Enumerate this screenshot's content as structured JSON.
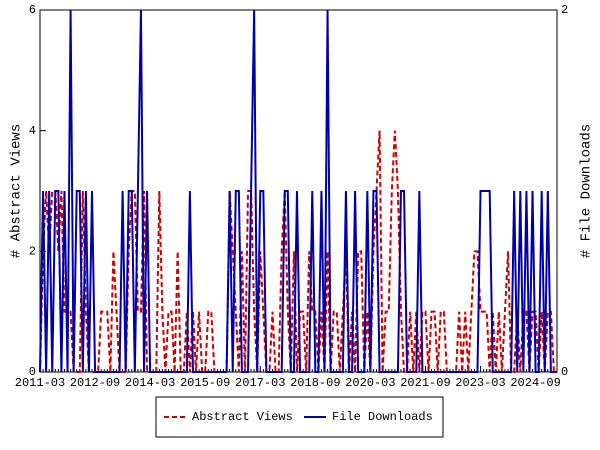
{
  "chart_data": {
    "type": "line",
    "x": [
      "2011-03",
      "2011-04",
      "2011-05",
      "2011-06",
      "2011-07",
      "2011-08",
      "2011-09",
      "2011-10",
      "2011-11",
      "2011-12",
      "2012-01",
      "2012-02",
      "2012-03",
      "2012-04",
      "2012-05",
      "2012-06",
      "2012-07",
      "2012-08",
      "2012-09",
      "2012-10",
      "2012-11",
      "2012-12",
      "2013-01",
      "2013-02",
      "2013-03",
      "2013-04",
      "2013-05",
      "2013-06",
      "2013-07",
      "2013-08",
      "2013-09",
      "2013-10",
      "2013-11",
      "2013-12",
      "2014-01",
      "2014-02",
      "2014-03",
      "2014-04",
      "2014-05",
      "2014-06",
      "2014-07",
      "2014-08",
      "2014-09",
      "2014-10",
      "2014-11",
      "2014-12",
      "2015-01",
      "2015-02",
      "2015-03",
      "2015-04",
      "2015-05",
      "2015-06",
      "2015-07",
      "2015-08",
      "2015-09",
      "2015-10",
      "2015-11",
      "2015-12",
      "2016-01",
      "2016-02",
      "2016-03",
      "2016-04",
      "2016-05",
      "2016-06",
      "2016-07",
      "2016-08",
      "2016-09",
      "2016-10",
      "2016-11",
      "2016-12",
      "2017-01",
      "2017-02",
      "2017-03",
      "2017-04",
      "2017-05",
      "2017-06",
      "2017-07",
      "2017-08",
      "2017-09",
      "2017-10",
      "2017-11",
      "2017-12",
      "2018-01",
      "2018-02",
      "2018-03",
      "2018-04",
      "2018-05",
      "2018-06",
      "2018-07",
      "2018-08",
      "2018-09",
      "2018-10",
      "2018-11",
      "2018-12",
      "2019-01",
      "2019-02",
      "2019-03",
      "2019-04",
      "2019-05",
      "2019-06",
      "2019-07",
      "2019-08",
      "2019-09",
      "2019-10",
      "2019-11",
      "2019-12",
      "2020-01",
      "2020-02",
      "2020-03",
      "2020-04",
      "2020-05",
      "2020-06",
      "2020-07",
      "2020-08",
      "2020-09",
      "2020-10",
      "2020-11",
      "2020-12",
      "2021-01",
      "2021-02",
      "2021-03",
      "2021-04",
      "2021-05",
      "2021-06",
      "2021-07",
      "2021-08",
      "2021-09",
      "2021-10",
      "2021-11",
      "2021-12",
      "2022-01",
      "2022-02",
      "2022-03",
      "2022-04",
      "2022-05",
      "2022-06",
      "2022-07",
      "2022-08",
      "2022-09",
      "2022-10",
      "2022-11",
      "2022-12",
      "2023-01",
      "2023-02",
      "2023-03",
      "2023-04",
      "2023-05",
      "2023-06",
      "2023-07",
      "2023-08",
      "2023-09",
      "2023-10",
      "2023-11",
      "2023-12",
      "2024-01",
      "2024-02",
      "2024-03",
      "2024-04",
      "2024-05",
      "2024-06",
      "2024-07",
      "2024-08",
      "2024-09",
      "2024-10",
      "2024-11",
      "2024-12",
      "2025-01",
      "2025-02",
      "2025-03",
      "2025-04"
    ],
    "xticks": [
      "2011-03",
      "2012-09",
      "2014-03",
      "2015-09",
      "2017-03",
      "2018-09",
      "2020-03",
      "2021-09",
      "2023-03",
      "2024-09"
    ],
    "ylabel": "# Abstract Views",
    "y2label": "# File Downloads",
    "ylim": [
      0,
      6
    ],
    "yticks": [
      0,
      2,
      4,
      6
    ],
    "y2lim": [
      0,
      2
    ],
    "y2ticks": [
      0,
      2
    ],
    "legend": "bottom",
    "series": [
      {
        "name": "Abstract Views",
        "color": "#cc0000",
        "dash": "dashed",
        "axis": "y",
        "values": [
          0,
          2,
          3,
          2,
          3,
          3,
          2,
          3,
          1,
          1,
          1,
          0,
          0,
          0,
          3,
          1,
          0,
          0,
          0,
          0,
          1,
          1,
          1,
          0,
          2,
          1,
          0,
          0,
          0,
          2,
          3,
          3,
          1,
          1,
          3,
          0,
          0,
          0,
          0,
          3,
          1,
          0,
          1,
          1,
          0,
          2,
          0,
          0,
          1,
          0,
          1,
          0,
          1,
          0,
          0,
          1,
          1,
          0,
          0,
          0,
          0,
          0,
          3,
          2,
          1,
          0,
          2,
          0,
          3,
          3,
          1,
          0,
          2,
          1,
          0,
          0,
          1,
          0,
          0,
          2,
          3,
          1,
          0,
          2,
          0,
          1,
          1,
          0,
          2,
          1,
          1,
          0,
          1,
          0,
          2,
          0,
          1,
          1,
          0,
          1,
          2,
          0,
          1,
          0,
          2,
          2,
          0,
          1,
          0,
          2,
          3,
          4,
          0,
          1,
          1,
          3,
          4,
          3,
          1,
          0,
          0,
          1,
          0,
          1,
          0,
          1,
          1,
          0,
          1,
          1,
          0,
          1,
          1,
          0,
          0,
          0,
          0,
          1,
          0,
          1,
          0,
          1,
          2,
          2,
          1,
          1,
          1,
          0,
          1,
          0,
          1,
          0,
          1,
          2,
          0,
          0,
          1,
          0,
          1,
          1,
          0,
          1,
          1,
          0,
          1,
          0,
          1,
          1,
          0,
          0
        ]
      },
      {
        "name": "File Downloads",
        "color": "#0000aa",
        "dash": "solid",
        "axis": "y2",
        "values": [
          0,
          1,
          0,
          1,
          0,
          1,
          1,
          0,
          1,
          0,
          2,
          0,
          1,
          1,
          0,
          1,
          0,
          1,
          0,
          0,
          0,
          0,
          0,
          0,
          0,
          0,
          0,
          1,
          0,
          1,
          1,
          0,
          1,
          2,
          0,
          1,
          0,
          0,
          0,
          0,
          0,
          0,
          0,
          0,
          0,
          0,
          0,
          0,
          0,
          1,
          0,
          0,
          0,
          0,
          0,
          0,
          0,
          0,
          0,
          0,
          0,
          0,
          1,
          0,
          1,
          1,
          0,
          0,
          0,
          1,
          2,
          0,
          1,
          1,
          0,
          0,
          0,
          0,
          0,
          0,
          1,
          1,
          0,
          0,
          1,
          0,
          0,
          0,
          0,
          1,
          0,
          0,
          1,
          0,
          2,
          0,
          0,
          0,
          0,
          0,
          1,
          0,
          0,
          1,
          0,
          0,
          0,
          1,
          0,
          1,
          1,
          0,
          0,
          0,
          0,
          0,
          0,
          0,
          1,
          1,
          0,
          0,
          0,
          0,
          1,
          0,
          0,
          0,
          0,
          0,
          0,
          0,
          0,
          0,
          0,
          0,
          0,
          0,
          0,
          0,
          0,
          0,
          0,
          0,
          1,
          1,
          1,
          1,
          0,
          0,
          0,
          0,
          0,
          0,
          0,
          1,
          0,
          1,
          0,
          1,
          0,
          1,
          0,
          0,
          1,
          0,
          1,
          0,
          0,
          0
        ]
      }
    ]
  }
}
